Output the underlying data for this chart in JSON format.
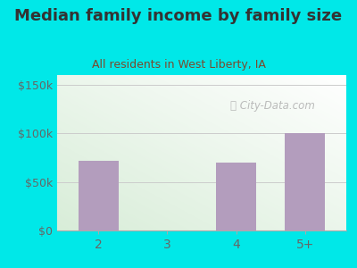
{
  "title": "Median family income by family size",
  "subtitle": "All residents in West Liberty, IA",
  "categories": [
    "2",
    "3",
    "4",
    "5+"
  ],
  "values": [
    72000,
    0,
    70000,
    100000
  ],
  "bar_color": "#b39dbd",
  "title_color": "#333333",
  "subtitle_color": "#7b4a2d",
  "bg_outer": "#00e8e8",
  "yticks": [
    0,
    50000,
    100000,
    150000
  ],
  "ytick_labels": [
    "$0",
    "$50k",
    "$100k",
    "$150k"
  ],
  "ylim": [
    0,
    160000
  ],
  "watermark": "City-Data.com",
  "tick_color": "#666666",
  "title_fontsize": 13,
  "subtitle_fontsize": 9
}
